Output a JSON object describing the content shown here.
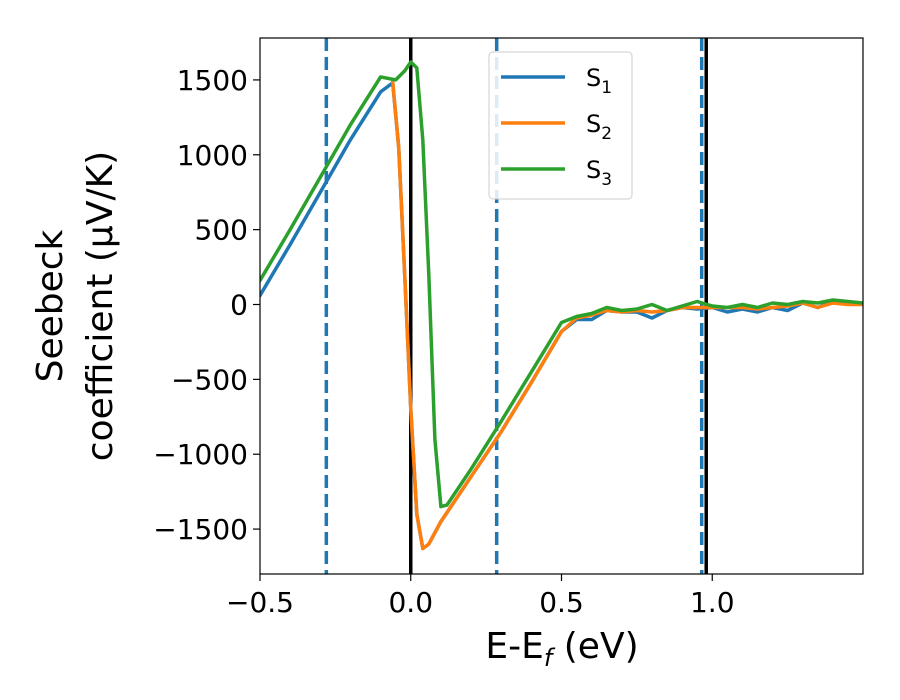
{
  "chart_data": {
    "type": "line",
    "xlabel": "E-E",
    "xlabel_sub": "f",
    "xlabel_unit": " (eV)",
    "ylabel_line1": "Seebeck",
    "ylabel_line2": "coefficient  (μV/K)",
    "xlim": [
      -0.5,
      1.5
    ],
    "ylim": [
      -1800,
      1780
    ],
    "x_ticks": [
      -0.5,
      0.0,
      0.5,
      1.0
    ],
    "x_tick_labels": [
      "−0.5",
      "0.0",
      "0.5",
      "1.0"
    ],
    "y_ticks": [
      1500,
      1000,
      500,
      0,
      -500,
      -1000,
      -1500
    ],
    "y_tick_labels": [
      "1500",
      "1000",
      "500",
      "0",
      "−500",
      "−1000",
      "−1500"
    ],
    "grid": false,
    "legend_position": "top-center",
    "series": [
      {
        "name": "S",
        "name_sub": "1",
        "color": "#1f77b4",
        "x": [
          -0.5,
          -0.4,
          -0.3,
          -0.2,
          -0.1,
          -0.06,
          -0.04,
          -0.02,
          0.0,
          0.02,
          0.04,
          0.06,
          0.1,
          0.2,
          0.3,
          0.4,
          0.5,
          0.55,
          0.6,
          0.65,
          0.7,
          0.75,
          0.8,
          0.85,
          0.9,
          0.95,
          1.0,
          1.05,
          1.1,
          1.15,
          1.2,
          1.25,
          1.3,
          1.35,
          1.4,
          1.45,
          1.5
        ],
        "y": [
          60,
          400,
          750,
          1100,
          1420,
          1480,
          1050,
          200,
          -700,
          -1400,
          -1630,
          -1600,
          -1450,
          -1150,
          -850,
          -520,
          -180,
          -100,
          -100,
          -40,
          -50,
          -50,
          -90,
          -40,
          -20,
          -30,
          -20,
          -50,
          -30,
          -50,
          -20,
          -40,
          10,
          -20,
          20,
          10,
          0
        ]
      },
      {
        "name": "S",
        "name_sub": "2",
        "color": "#ff7f0e",
        "x": [
          -0.06,
          -0.04,
          -0.02,
          0.0,
          0.02,
          0.04,
          0.06,
          0.1,
          0.2,
          0.3,
          0.4,
          0.5,
          0.55,
          0.6,
          0.65,
          0.7,
          0.75,
          0.8,
          0.85,
          0.9,
          0.95,
          1.0,
          1.05,
          1.1,
          1.15,
          1.2,
          1.25,
          1.3,
          1.35,
          1.4,
          1.45,
          1.5
        ],
        "y": [
          1490,
          1050,
          200,
          -700,
          -1400,
          -1630,
          -1600,
          -1450,
          -1150,
          -850,
          -520,
          -180,
          -90,
          -70,
          -40,
          -50,
          -40,
          -50,
          -40,
          -20,
          -20,
          -20,
          -20,
          -20,
          -30,
          -20,
          -10,
          10,
          -20,
          10,
          0,
          0
        ]
      },
      {
        "name": "S",
        "name_sub": "3",
        "color": "#2ca02c",
        "x": [
          -0.5,
          -0.4,
          -0.3,
          -0.2,
          -0.1,
          -0.05,
          -0.02,
          0.0,
          0.02,
          0.04,
          0.06,
          0.08,
          0.1,
          0.12,
          0.2,
          0.3,
          0.4,
          0.5,
          0.55,
          0.6,
          0.65,
          0.7,
          0.75,
          0.8,
          0.85,
          0.9,
          0.95,
          1.0,
          1.05,
          1.1,
          1.15,
          1.2,
          1.25,
          1.3,
          1.35,
          1.4,
          1.45,
          1.5
        ],
        "y": [
          160,
          500,
          850,
          1200,
          1520,
          1500,
          1560,
          1620,
          1580,
          1100,
          200,
          -900,
          -1350,
          -1340,
          -1100,
          -780,
          -450,
          -120,
          -80,
          -60,
          -20,
          -40,
          -30,
          0,
          -40,
          -10,
          20,
          -10,
          -20,
          0,
          -20,
          10,
          0,
          20,
          10,
          30,
          20,
          10
        ]
      }
    ],
    "vertical_lines": [
      {
        "x": -0.28,
        "style": "dashed",
        "color": "#1f77b4"
      },
      {
        "x": 0.285,
        "style": "dashed",
        "color": "#1f77b4"
      },
      {
        "x": 0.965,
        "style": "dashed",
        "color": "#1f77b4"
      },
      {
        "x": 0.0,
        "style": "solid",
        "color": "#000000"
      },
      {
        "x": 0.98,
        "style": "solid",
        "color": "#000000"
      }
    ]
  }
}
